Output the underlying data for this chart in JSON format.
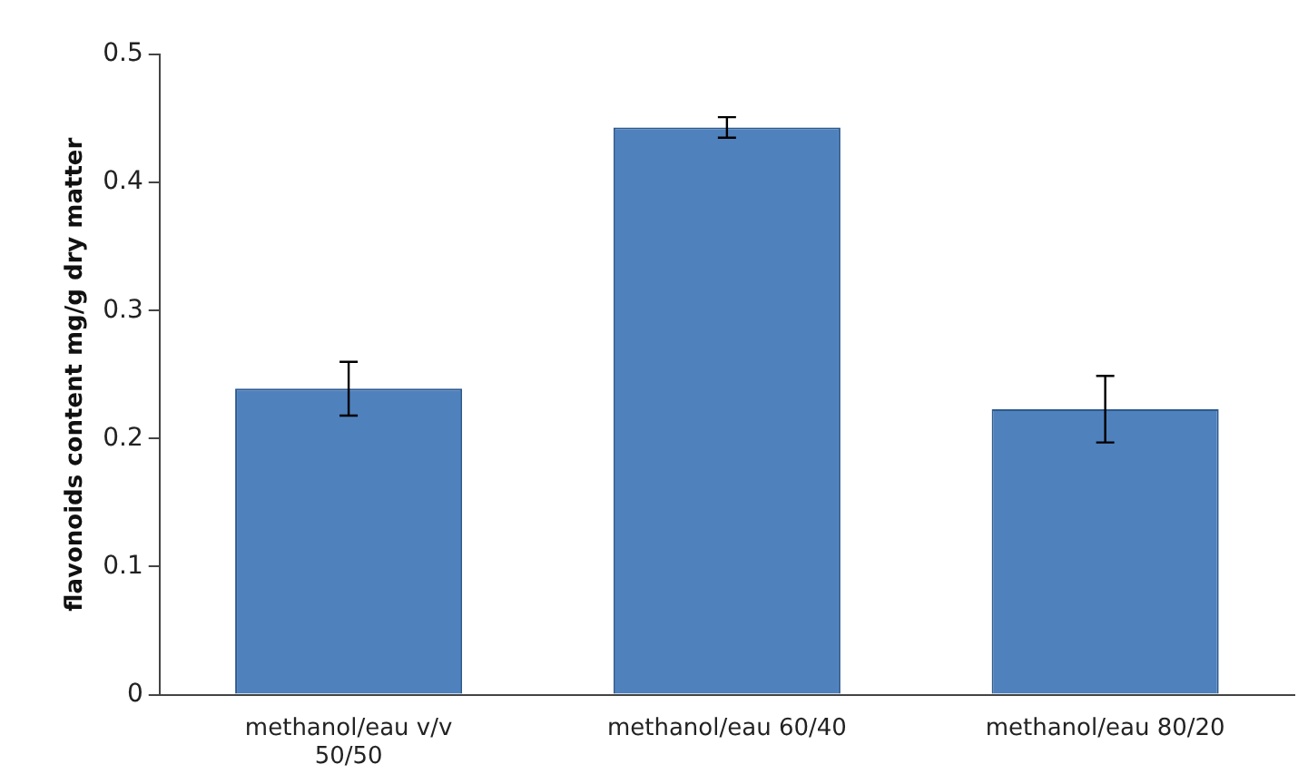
{
  "chart_data": {
    "type": "bar",
    "ylabel": "flavonoids content mg/g dry matter",
    "categories": [
      "methanol/eau v/v 50/50",
      "methanol/eau 60/40",
      "methanol/eau 80/20"
    ],
    "values": [
      0.239,
      0.443,
      0.223
    ],
    "errors": [
      0.021,
      0.008,
      0.026
    ],
    "color": "#4f81bd",
    "ylim": [
      0,
      0.5
    ],
    "yticks": [
      0,
      0.1,
      0.2,
      0.3,
      0.4,
      0.5
    ],
    "grid": false,
    "legend": false
  }
}
